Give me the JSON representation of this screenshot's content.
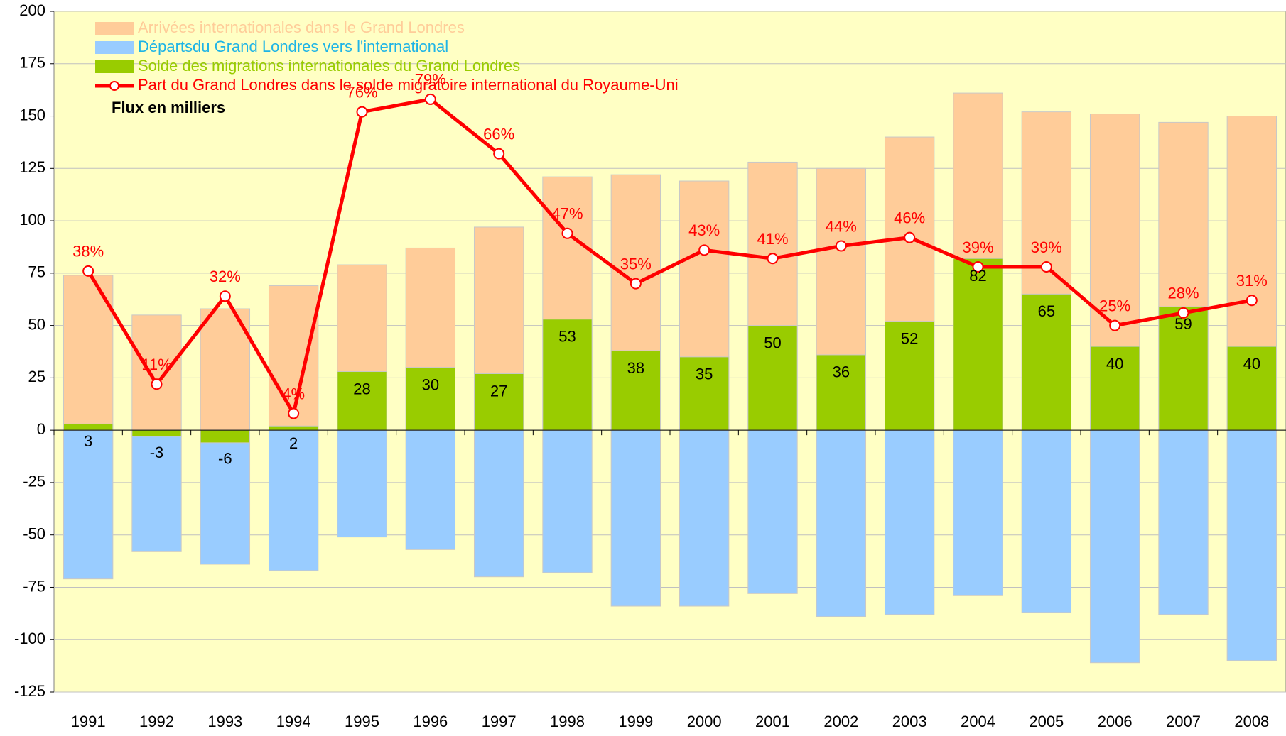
{
  "chart_data": {
    "type": "bar",
    "annotation": "Flux en milliers",
    "categories": [
      "1991",
      "1992",
      "1993",
      "1994",
      "1995",
      "1996",
      "1997",
      "1998",
      "1999",
      "2000",
      "2001",
      "2002",
      "2003",
      "2004",
      "2005",
      "2006",
      "2007",
      "2008"
    ],
    "series": [
      {
        "name": "Arrivées internationales dans le Grand Londres",
        "color": "#FFCC99",
        "text_color": "#FFCC99",
        "type": "bar",
        "values": [
          74,
          55,
          58,
          69,
          79,
          87,
          97,
          121,
          122,
          119,
          128,
          125,
          140,
          161,
          152,
          151,
          147,
          150
        ]
      },
      {
        "name": "Départsdu Grand Londres vers l'international",
        "color": "#99CCFF",
        "text_color": "#1EB4E6",
        "type": "bar",
        "values": [
          -71,
          -58,
          -64,
          -67,
          -51,
          -57,
          -70,
          -68,
          -84,
          -84,
          -78,
          -89,
          -88,
          -79,
          -87,
          -111,
          -88,
          -110
        ]
      },
      {
        "name": "Solde des migrations internationales du Grand Londres",
        "color": "#99CC00",
        "text_color": "#99CC00",
        "type": "bar",
        "show_labels": true,
        "values": [
          3,
          -3,
          -6,
          2,
          28,
          30,
          27,
          53,
          38,
          35,
          50,
          36,
          52,
          82,
          65,
          40,
          59,
          40
        ]
      },
      {
        "name": "Part du Grand Londres dans le solde migratoire international du Royaume-Uni",
        "color": "#FF0000",
        "text_color": "#FF0000",
        "type": "line",
        "axis": "y2",
        "show_labels": true,
        "values": [
          38,
          11,
          32,
          4,
          76,
          79,
          66,
          47,
          35,
          43,
          41,
          44,
          46,
          39,
          39,
          25,
          28,
          31
        ],
        "value_labels": [
          "38%",
          "11%",
          "32%",
          "4%",
          "76%",
          "79%",
          "66%",
          "47%",
          "35%",
          "43%",
          "41%",
          "44%",
          "46%",
          "39%",
          "39%",
          "25%",
          "28%",
          "31%"
        ]
      }
    ],
    "ylim": [
      -125,
      200
    ],
    "yticks": [
      -125,
      -100,
      -75,
      -50,
      -25,
      0,
      25,
      50,
      75,
      100,
      125,
      150,
      175,
      200
    ],
    "y2lim": [
      -62.5,
      100
    ],
    "grid": true,
    "background": "#FFFFC4"
  }
}
